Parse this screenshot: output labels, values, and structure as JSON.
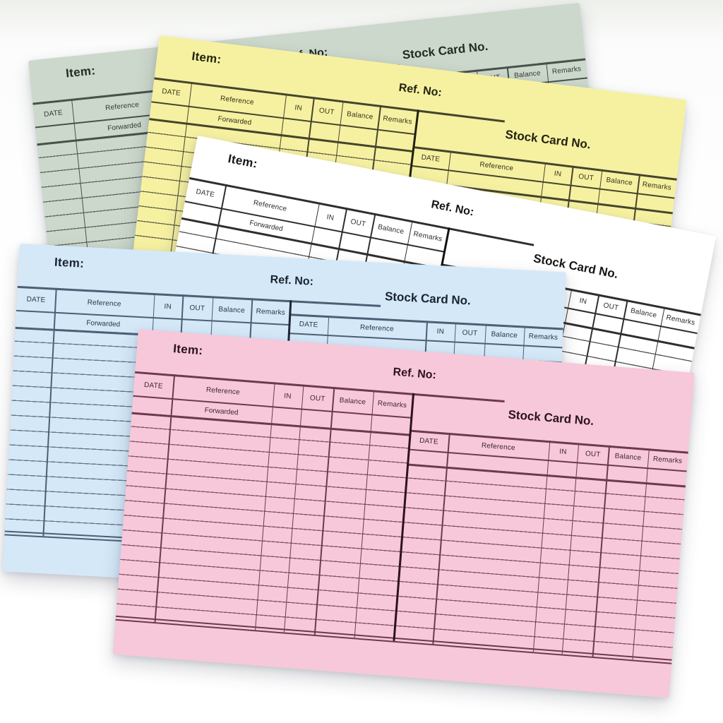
{
  "card_template": {
    "item_label": "Item:",
    "ref_no_label": "Ref. No:",
    "stock_card_no_label": "Stock Card No.",
    "forwarded_label": "Forwarded",
    "table_columns": [
      "DATE",
      "Reference",
      "IN",
      "OUT",
      "Balance",
      "Remarks"
    ]
  },
  "cards": [
    {
      "name": "green",
      "color": "#ccd8cb",
      "line_color": "#46524a",
      "row_line_color": "#5c685e",
      "divider_color": "#252e27",
      "text_color": "#232b24"
    },
    {
      "name": "yellow",
      "color": "#f6f1a1",
      "line_color": "#45452c",
      "row_line_color": "#626246",
      "divider_color": "#20200f",
      "text_color": "#23230f"
    },
    {
      "name": "white",
      "color": "#ffffff",
      "line_color": "#2e2e2e",
      "row_line_color": "#505050",
      "divider_color": "#121212",
      "text_color": "#161616"
    },
    {
      "name": "blue",
      "color": "#d4e8f8",
      "line_color": "#4d5f74",
      "row_line_color": "#64788c",
      "divider_color": "#1d2835",
      "text_color": "#19242f"
    },
    {
      "name": "pink",
      "color": "#f7c8da",
      "line_color": "#6d3950",
      "row_line_color": "#865469",
      "divider_color": "#2e1220",
      "text_color": "#2b1220"
    }
  ]
}
